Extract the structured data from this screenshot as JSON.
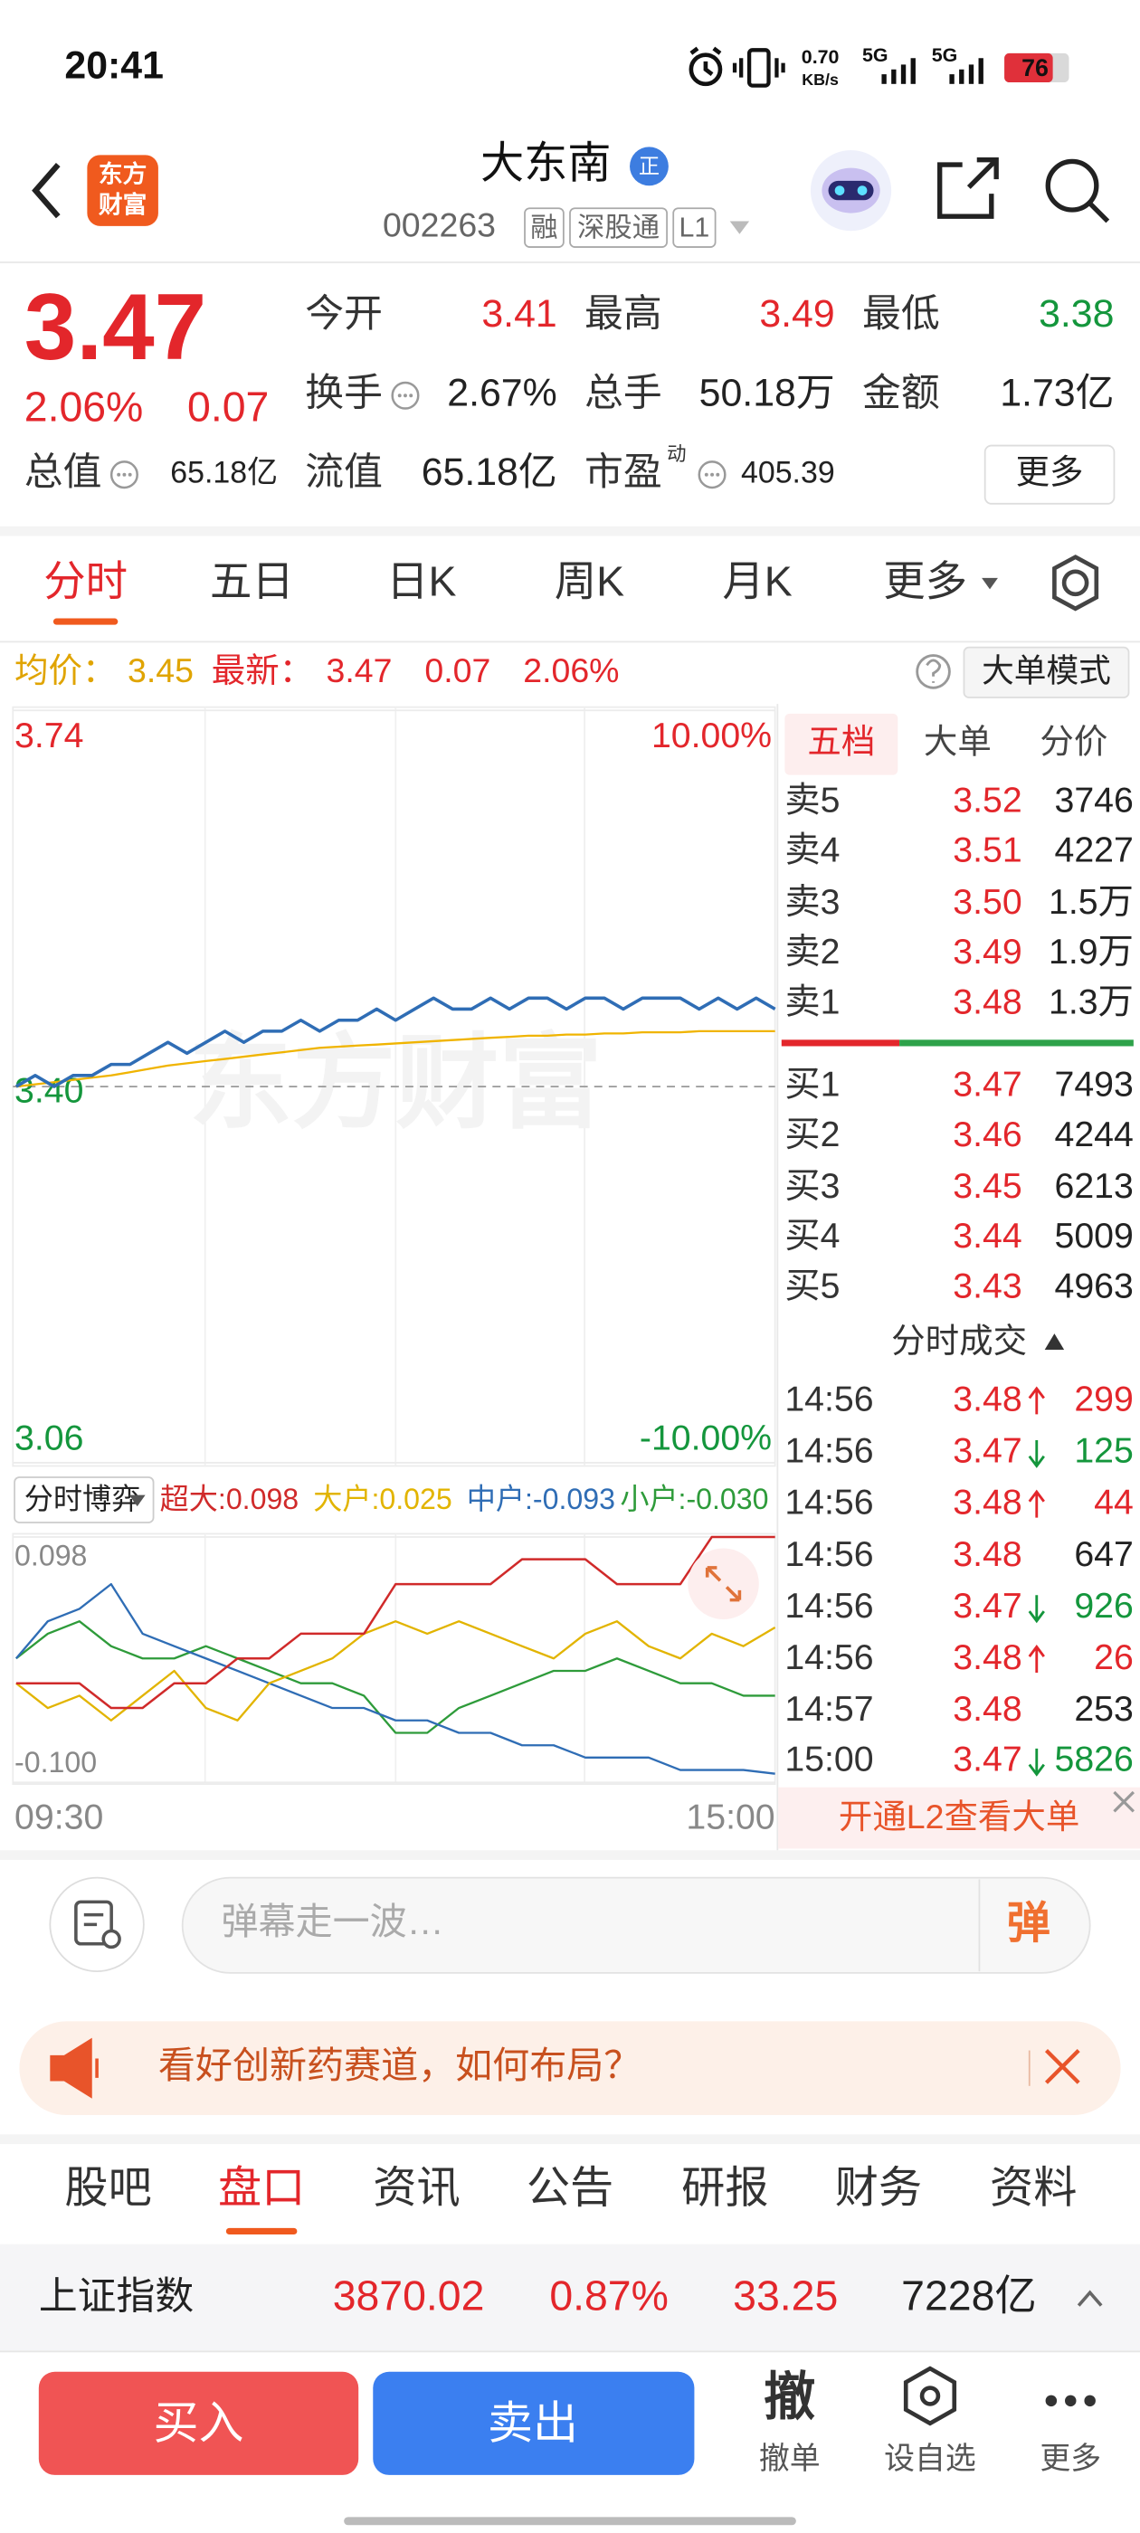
{
  "status_bar": {
    "time": "20:41",
    "speed": "0.70",
    "speed_unit": "KB/s",
    "network_1": "5G",
    "network_2": "5G",
    "battery": "76"
  },
  "header": {
    "logo_line_1": "东方",
    "logo_line_2": "财富",
    "name": "大东南",
    "badge": "正",
    "code": "002263",
    "tags": [
      "融",
      "深股通",
      "L1"
    ]
  },
  "quote": {
    "price": "3.47",
    "change_percent": "2.06%",
    "change": "0.07",
    "fields": [
      {
        "label": "今开",
        "value": "3.41",
        "trend": "up"
      },
      {
        "label": "最高",
        "value": "3.49",
        "trend": "up"
      },
      {
        "label": "最低",
        "value": "3.38",
        "trend": "down"
      },
      {
        "label": "换手",
        "value": "2.67%",
        "info_icon": true
      },
      {
        "label": "总手",
        "value": "50.18万"
      },
      {
        "label": "金额",
        "value": "1.73亿"
      },
      {
        "label": "总值",
        "value": "65.18亿",
        "info_icon": true
      },
      {
        "label": "流值",
        "value": "65.18亿"
      },
      {
        "label": "市盈",
        "sup": "动",
        "value": "405.39",
        "info_icon": true
      }
    ],
    "more_button": "更多"
  },
  "chart_tabs": {
    "items": [
      "分时",
      "五日",
      "日K",
      "周K",
      "月K",
      "更多"
    ],
    "active": 0
  },
  "chart_info": {
    "avg_label": "均价：",
    "avg": "3.45",
    "last_label": "最新：",
    "last": "3.47",
    "change": "0.07",
    "change_percent": "2.06%",
    "mode_button": "大单模式"
  },
  "watermark": "东方财富",
  "chart_data": [
    {
      "type": "line",
      "categories": [
        null,
        null,
        null,
        null,
        null,
        null,
        null,
        null,
        null,
        null,
        null,
        null,
        null,
        null,
        null,
        null,
        null,
        null,
        null,
        null,
        null,
        null,
        null,
        null,
        null,
        null,
        null,
        null,
        null,
        null,
        null,
        null,
        null,
        null,
        null,
        null,
        null,
        null,
        null,
        null,
        null
      ],
      "ylim": [
        3.06,
        3.74
      ],
      "yticks": [
        3.74,
        {
          "value": 3.4,
          "label": "3.40"
        },
        3.06
      ],
      "y2lim": [
        -10,
        10
      ],
      "y2ticks": [
        {
          "value": 10,
          "label": "10.00%"
        },
        {
          "value": -10,
          "label": "-10.00%"
        }
      ],
      "series": [
        {
          "color": "#2f6db5",
          "values": [
            3.4,
            3.41,
            3.4,
            3.41,
            3.41,
            3.42,
            3.42,
            3.43,
            3.44,
            3.43,
            3.44,
            3.45,
            3.44,
            3.45,
            3.45,
            3.46,
            3.45,
            3.46,
            3.46,
            3.47,
            3.46,
            3.47,
            3.48,
            3.47,
            3.47,
            3.48,
            3.47,
            3.48,
            3.48,
            3.47,
            3.48,
            3.48,
            3.47,
            3.48,
            3.48,
            3.48,
            3.47,
            3.48,
            3.47,
            3.48,
            3.47
          ]
        },
        {
          "color": "#f0b400",
          "values": [
            3.4,
            3.402,
            3.404,
            3.406,
            3.408,
            3.41,
            3.413,
            3.416,
            3.419,
            3.421,
            3.423,
            3.425,
            3.427,
            3.429,
            3.431,
            3.433,
            3.435,
            3.436,
            3.437,
            3.438,
            3.439,
            3.44,
            3.441,
            3.442,
            3.443,
            3.444,
            3.445,
            3.446,
            3.446,
            3.447,
            3.447,
            3.448,
            3.448,
            3.449,
            3.449,
            3.449,
            3.45,
            3.45,
            3.45,
            3.45,
            3.45
          ]
        }
      ]
    },
    {
      "type": "line",
      "title": "分时博弈",
      "categories": [
        "09:30",
        null,
        null,
        null,
        null,
        null,
        null,
        null,
        null,
        null,
        null,
        null,
        null,
        null,
        null,
        null,
        null,
        null,
        null,
        null,
        null,
        null,
        null,
        null,
        "15:00"
      ],
      "ylim": [
        -0.1,
        0.098
      ],
      "yticks": [
        0.098,
        {
          "value": -0.1,
          "label": "-0.100"
        }
      ],
      "series": [
        {
          "name": "超大:0.098",
          "color": "#d02a2a",
          "values": [
            -0.02,
            -0.02,
            -0.02,
            -0.04,
            -0.04,
            -0.02,
            -0.02,
            0.0,
            0.0,
            0.02,
            0.02,
            0.02,
            0.06,
            0.06,
            0.06,
            0.06,
            0.08,
            0.08,
            0.08,
            0.06,
            0.06,
            0.06,
            0.098,
            0.098,
            0.098
          ]
        },
        {
          "name": "大户:0.025",
          "color": "#e2b400",
          "values": [
            -0.02,
            -0.04,
            -0.03,
            -0.05,
            -0.03,
            -0.01,
            -0.04,
            -0.05,
            -0.02,
            -0.01,
            0.0,
            0.02,
            0.03,
            0.02,
            0.03,
            0.02,
            0.01,
            0.0,
            0.02,
            0.03,
            0.01,
            0.0,
            0.02,
            0.01,
            0.025
          ]
        },
        {
          "name": "中户:-0.093",
          "color": "#2f6db5",
          "values": [
            0.0,
            0.03,
            0.04,
            0.06,
            0.02,
            0.01,
            0.0,
            -0.01,
            -0.02,
            -0.03,
            -0.04,
            -0.04,
            -0.05,
            -0.05,
            -0.06,
            -0.06,
            -0.07,
            -0.07,
            -0.08,
            -0.08,
            -0.08,
            -0.09,
            -0.09,
            -0.09,
            -0.093
          ]
        },
        {
          "name": "小户:-0.030",
          "color": "#2e9b3a",
          "values": [
            0.0,
            0.02,
            0.03,
            0.01,
            0.0,
            0.0,
            0.01,
            0.0,
            -0.01,
            -0.02,
            -0.02,
            -0.03,
            -0.06,
            -0.06,
            -0.04,
            -0.03,
            -0.02,
            -0.01,
            -0.01,
            0.0,
            -0.01,
            -0.02,
            -0.02,
            -0.03,
            -0.03
          ]
        }
      ]
    }
  ],
  "order_book": {
    "tabs": [
      "五档",
      "大单",
      "分价"
    ],
    "active": 0,
    "asks": [
      {
        "label": "卖5",
        "price": "3.52",
        "volume": "3746"
      },
      {
        "label": "卖4",
        "price": "3.51",
        "volume": "4227"
      },
      {
        "label": "卖3",
        "price": "3.50",
        "volume": "1.5万"
      },
      {
        "label": "卖2",
        "price": "3.49",
        "volume": "1.9万"
      },
      {
        "label": "卖1",
        "price": "3.48",
        "volume": "1.3万"
      }
    ],
    "bids": [
      {
        "label": "买1",
        "price": "3.47",
        "volume": "7493"
      },
      {
        "label": "买2",
        "price": "3.46",
        "volume": "4244"
      },
      {
        "label": "买3",
        "price": "3.45",
        "volume": "6213"
      },
      {
        "label": "买4",
        "price": "3.44",
        "volume": "5009"
      },
      {
        "label": "买5",
        "price": "3.43",
        "volume": "4963"
      }
    ]
  },
  "trades": {
    "title": "分时成交",
    "rows": [
      {
        "time": "14:56",
        "price": "3.48",
        "direction": "up",
        "volume": "299"
      },
      {
        "time": "14:56",
        "price": "3.47",
        "direction": "down",
        "volume": "125"
      },
      {
        "time": "14:56",
        "price": "3.48",
        "direction": "up",
        "volume": "44"
      },
      {
        "time": "14:56",
        "price": "3.48",
        "direction": "none",
        "volume": "647"
      },
      {
        "time": "14:56",
        "price": "3.47",
        "direction": "down",
        "volume": "926"
      },
      {
        "time": "14:56",
        "price": "3.48",
        "direction": "up",
        "volume": "26"
      },
      {
        "time": "14:57",
        "price": "3.48",
        "direction": "none",
        "volume": "253"
      },
      {
        "time": "15:00",
        "price": "3.47",
        "direction": "down",
        "volume": "5826"
      }
    ]
  },
  "l2_banner": "开通L2查看大单",
  "comment_bar": {
    "placeholder": "弹幕走一波…",
    "button": "弹"
  },
  "promo": "看好创新药赛道，如何布局？",
  "section_tabs": {
    "items": [
      "股吧",
      "盘口",
      "资讯",
      "公告",
      "研报",
      "财务",
      "资料"
    ],
    "active": 1
  },
  "index_bar": {
    "name": "上证指数",
    "value": "3870.02",
    "change_percent": "0.87%",
    "change": "33.25",
    "turnover": "7228亿",
    "trend": "up"
  },
  "actions": {
    "buy": "买入",
    "sell": "卖出",
    "cancel_icon": "撤",
    "cancel": "撤单",
    "watchlist": "设自选",
    "more": "更多"
  }
}
